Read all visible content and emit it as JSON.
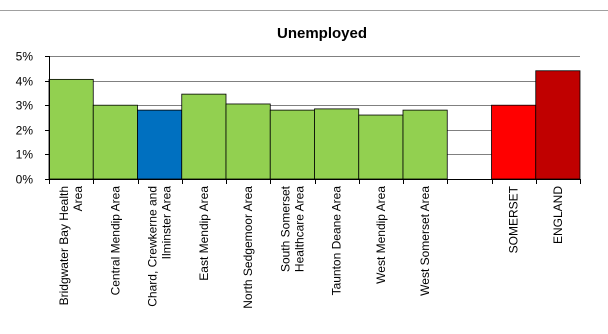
{
  "chart_data": {
    "type": "bar",
    "title": "Unemployed",
    "categories": [
      "Bridgwater Bay Health Area",
      "Central Mendip Area",
      "Chard, Crewkerne and Ilminster Area",
      "East Mendip Area",
      "North Sedgemoor Area",
      "South Somerset Healthcare Area",
      "Taunton Deane Area",
      "West Mendip Area",
      "West Somerset Area",
      "",
      "SOMERSET",
      "ENGLAND"
    ],
    "tick_labels": [
      [
        "Bridgwater Bay Health",
        "Area"
      ],
      [
        "Central Mendip Area"
      ],
      [
        "Chard, Crewkerne and",
        "Ilminster Area"
      ],
      [
        "East Mendip Area"
      ],
      [
        "North Sedgemoor Area"
      ],
      [
        "South Somerset",
        "Healthcare Area"
      ],
      [
        "Taunton Deane Area"
      ],
      [
        "West Mendip Area"
      ],
      [
        "West Somerset Area"
      ],
      [],
      [
        "SOMERSET"
      ],
      [
        "ENGLAND"
      ]
    ],
    "values": [
      4.05,
      3.0,
      2.8,
      3.45,
      3.05,
      2.8,
      2.85,
      2.6,
      2.8,
      null,
      3.0,
      4.4
    ],
    "bar_colors": [
      "#92d050",
      "#92d050",
      "#0070c0",
      "#92d050",
      "#92d050",
      "#92d050",
      "#92d050",
      "#92d050",
      "#92d050",
      "",
      "#ff0000",
      "#c00000"
    ],
    "ylim": [
      0,
      5
    ],
    "yticks": [
      "0%",
      "1%",
      "2%",
      "3%",
      "4%",
      "5%"
    ],
    "grid": true,
    "legend": "none",
    "colors": {
      "highlight": "#0070c0",
      "area": "#92d050",
      "county": "#ff0000",
      "national": "#c00000",
      "gridline": "#808080",
      "border": "#a0a0a0"
    }
  }
}
